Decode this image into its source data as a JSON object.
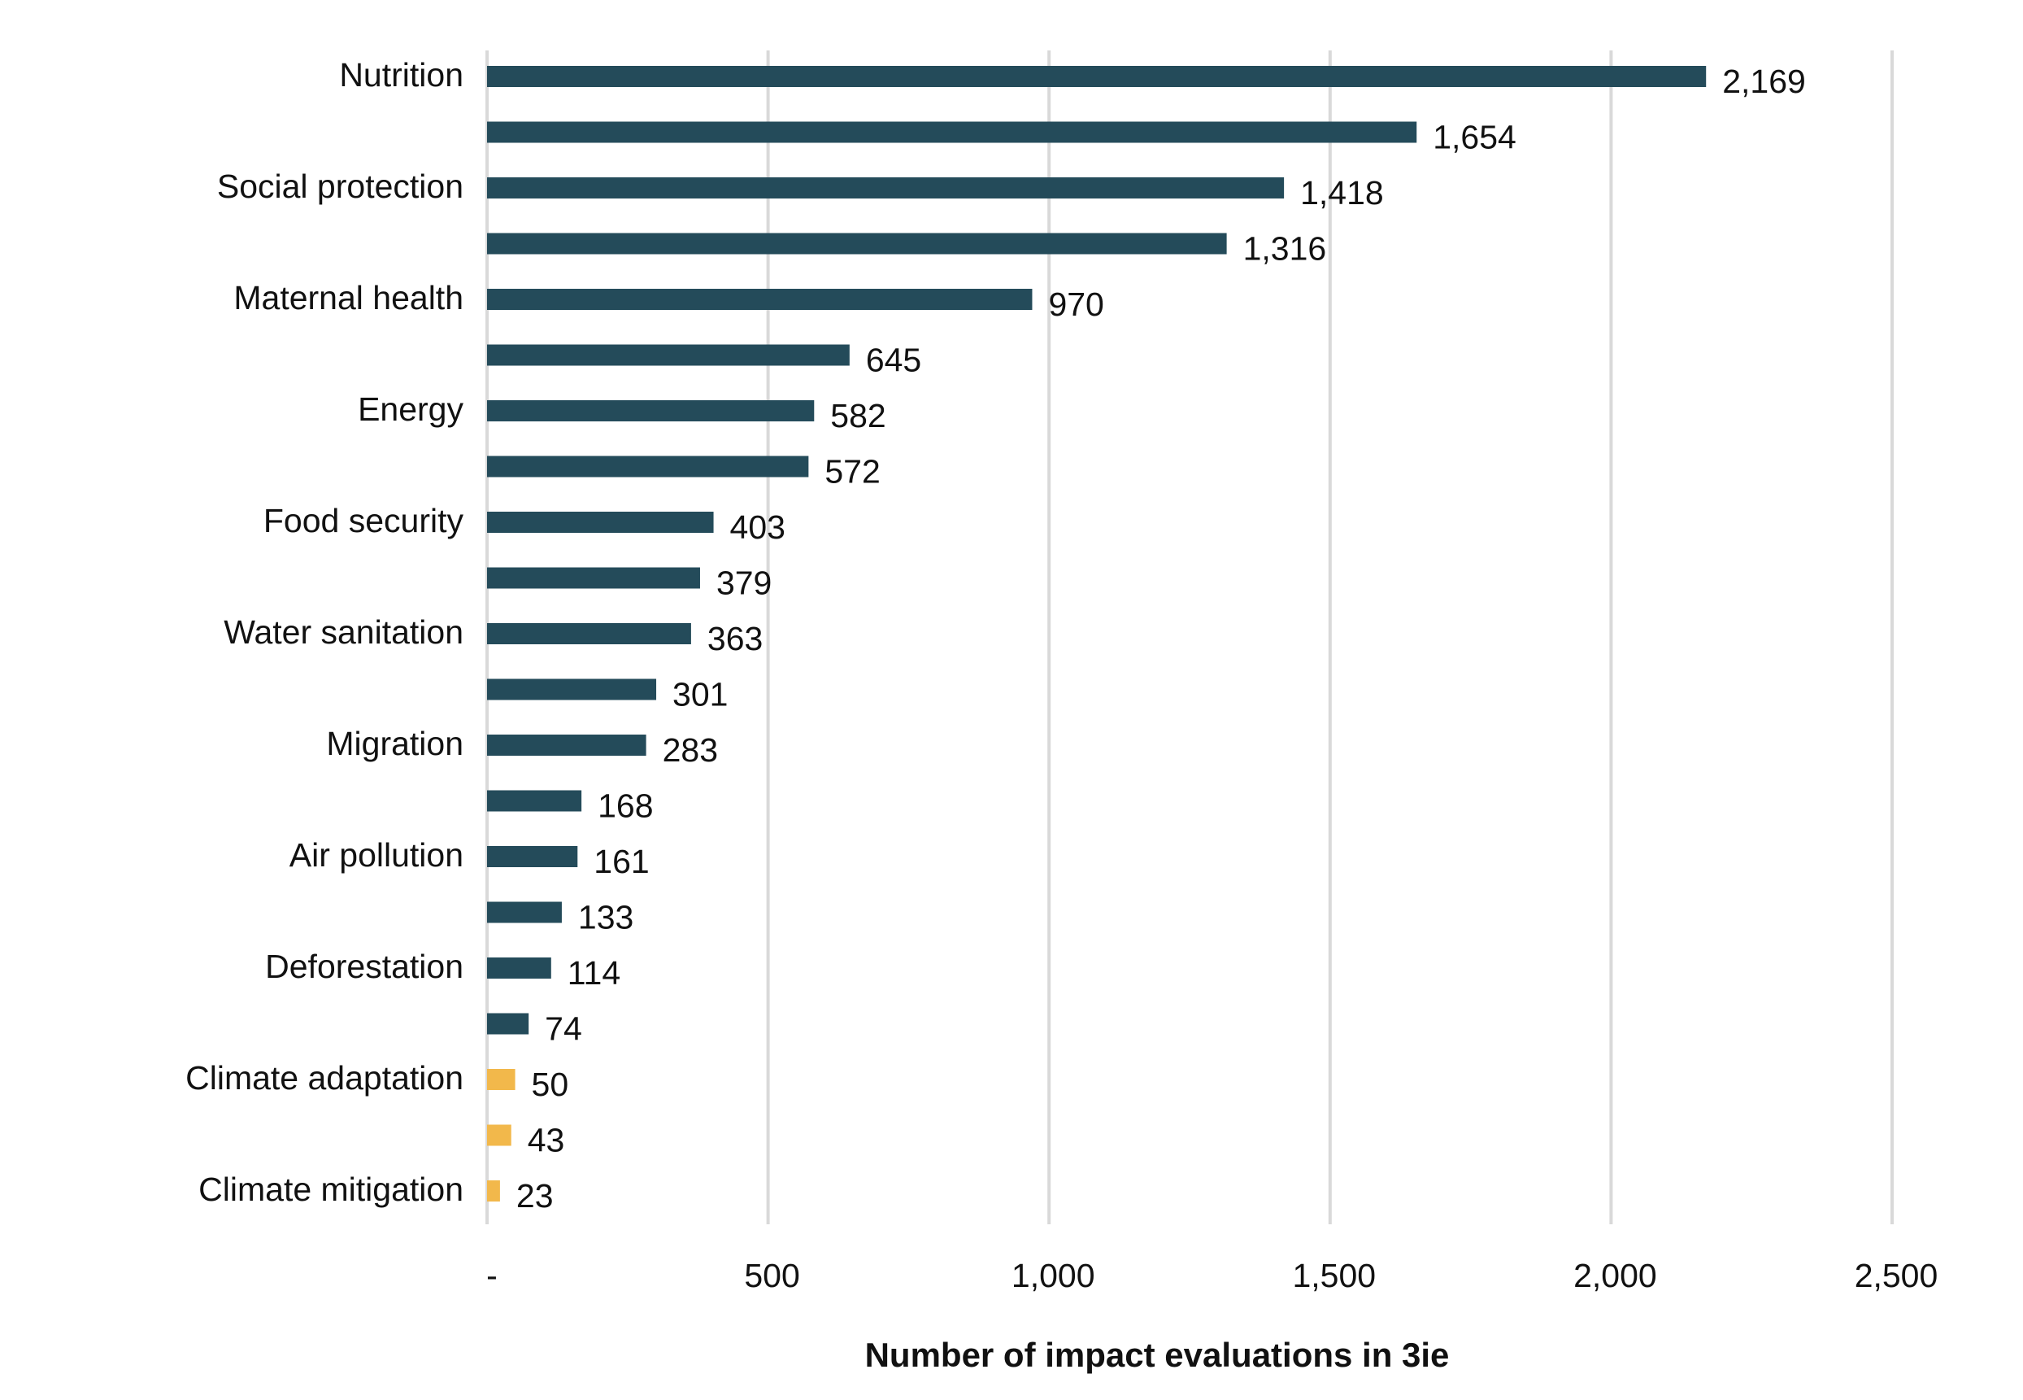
{
  "chart_data": {
    "type": "bar",
    "orientation": "horizontal",
    "categories": [
      "Nutrition",
      "",
      "Social protection",
      "",
      "Maternal health",
      "",
      "Energy",
      "",
      "Food security",
      "",
      "Water sanitation",
      "",
      "Migration",
      "",
      "Air pollution",
      "",
      "Deforestation",
      "",
      "Climate adaptation",
      "",
      "Climate mitigation"
    ],
    "values": [
      2169,
      1654,
      1418,
      1316,
      970,
      645,
      582,
      572,
      403,
      379,
      363,
      301,
      283,
      168,
      161,
      133,
      114,
      74,
      50,
      43,
      23
    ],
    "value_labels": [
      "2,169",
      "1,654",
      "1,418",
      "1,316",
      "970",
      "645",
      "582",
      "572",
      "403",
      "379",
      "363",
      "301",
      "283",
      "168",
      "161",
      "133",
      "114",
      "74",
      "50",
      "43",
      "23"
    ],
    "bar_colors": [
      "#244B5A",
      "#244B5A",
      "#244B5A",
      "#244B5A",
      "#244B5A",
      "#244B5A",
      "#244B5A",
      "#244B5A",
      "#244B5A",
      "#244B5A",
      "#244B5A",
      "#244B5A",
      "#244B5A",
      "#244B5A",
      "#244B5A",
      "#244B5A",
      "#244B5A",
      "#244B5A",
      "#F2B84B",
      "#F2B84B",
      "#F2B84B"
    ],
    "xlabel": "Number of impact evaluations in 3ie",
    "ylabel": "",
    "xlim": [
      0,
      2500
    ],
    "xticks": [
      0,
      500,
      1000,
      1500,
      2000,
      2500
    ],
    "xtick_labels": [
      "-",
      "500",
      "1,000",
      "1,500",
      "2,000",
      "2,500"
    ],
    "grid": "vertical",
    "gridline_color": "#D9D9D9",
    "legend": "none"
  }
}
